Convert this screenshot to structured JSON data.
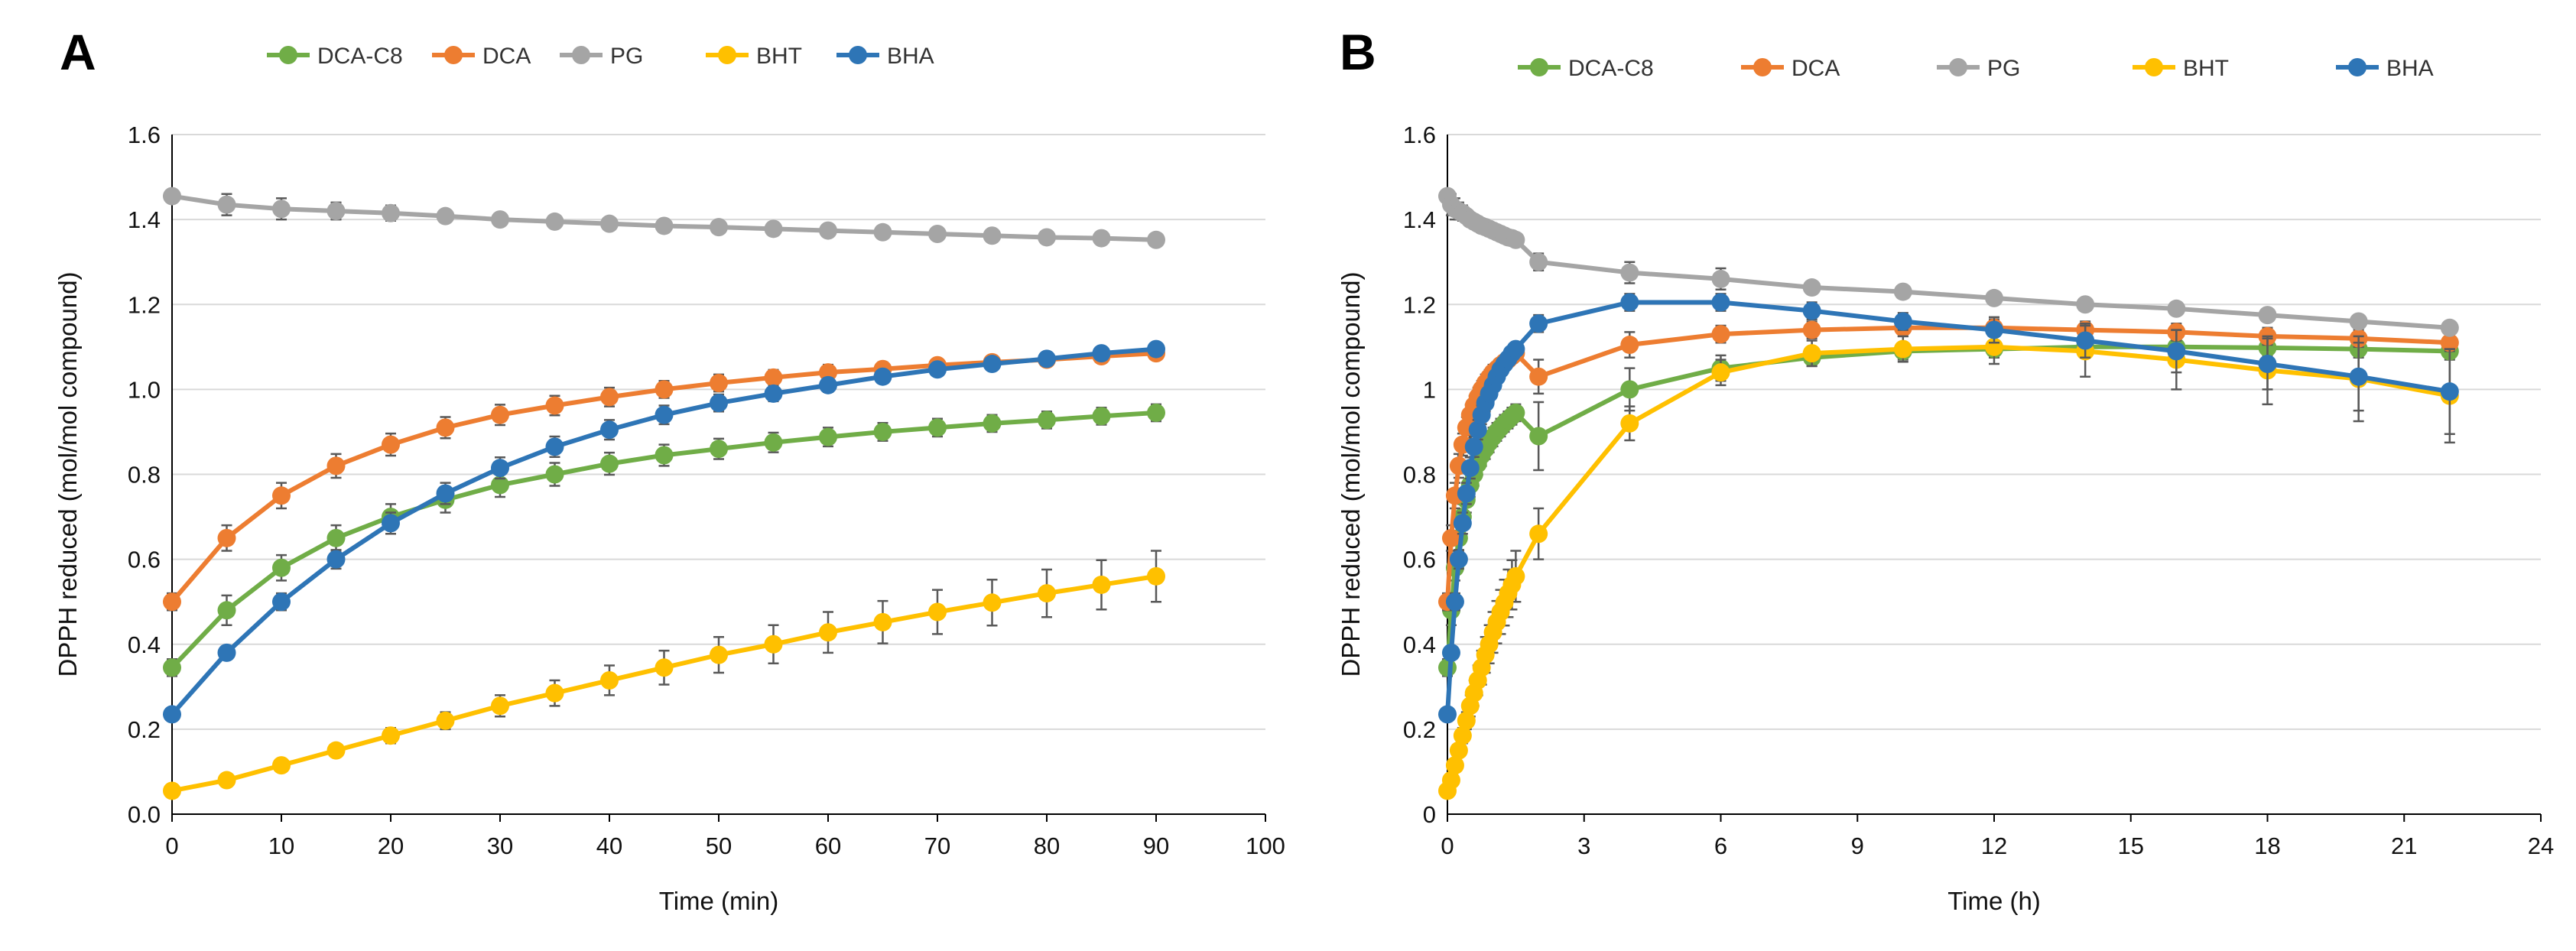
{
  "chart_data": [
    {
      "panel_label": "A",
      "type": "line",
      "xlabel": "Time (min)",
      "ylabel": "DPPH reduced (mol/mol compound)",
      "xlim": [
        0,
        100
      ],
      "ylim": [
        0,
        1.6
      ],
      "xticks": [
        "0",
        "10",
        "20",
        "30",
        "40",
        "50",
        "60",
        "70",
        "80",
        "90",
        "100"
      ],
      "yticks": [
        "0.0",
        "0.2",
        "0.4",
        "0.6",
        "0.8",
        "1.0",
        "1.2",
        "1.4",
        "1.6"
      ],
      "legend_position": "top",
      "grid": "horizontal",
      "x": [
        0,
        5,
        10,
        15,
        20,
        25,
        30,
        35,
        40,
        45,
        50,
        55,
        60,
        65,
        70,
        75,
        80,
        85,
        90
      ],
      "series": [
        {
          "name": "DCA-C8",
          "color": "#70ad47",
          "values": [
            0.345,
            0.48,
            0.58,
            0.65,
            0.7,
            0.74,
            0.775,
            0.8,
            0.825,
            0.845,
            0.86,
            0.875,
            0.888,
            0.9,
            0.91,
            0.92,
            0.928,
            0.937,
            0.945
          ],
          "errors": [
            0.02,
            0.035,
            0.03,
            0.03,
            0.03,
            0.03,
            0.028,
            0.027,
            0.026,
            0.025,
            0.024,
            0.023,
            0.022,
            0.021,
            0.021,
            0.02,
            0.02,
            0.02,
            0.02
          ]
        },
        {
          "name": "DCA",
          "color": "#ed7d31",
          "values": [
            0.5,
            0.65,
            0.75,
            0.82,
            0.87,
            0.91,
            0.94,
            0.962,
            0.982,
            1.0,
            1.015,
            1.028,
            1.04,
            1.048,
            1.057,
            1.064,
            1.07,
            1.078,
            1.085
          ],
          "errors": [
            0.02,
            0.03,
            0.03,
            0.028,
            0.026,
            0.025,
            0.024,
            0.023,
            0.022,
            0.02,
            0.02,
            0.018,
            0.018,
            0.016,
            0.015,
            0.015,
            0.014,
            0.014,
            0.013
          ]
        },
        {
          "name": "PG",
          "color": "#a5a5a5",
          "values": [
            1.455,
            1.435,
            1.425,
            1.42,
            1.415,
            1.408,
            1.4,
            1.395,
            1.39,
            1.385,
            1.382,
            1.378,
            1.374,
            1.37,
            1.366,
            1.362,
            1.358,
            1.356,
            1.352
          ],
          "errors": [
            0.01,
            0.025,
            0.025,
            0.02,
            0.018,
            0.015,
            0.012,
            0.012,
            0.01,
            0.01,
            0.01,
            0.01,
            0.01,
            0.01,
            0.01,
            0.01,
            0.01,
            0.01,
            0.01
          ]
        },
        {
          "name": "BHT",
          "color": "#ffc000",
          "values": [
            0.055,
            0.08,
            0.115,
            0.15,
            0.185,
            0.22,
            0.255,
            0.285,
            0.315,
            0.345,
            0.375,
            0.4,
            0.428,
            0.452,
            0.476,
            0.498,
            0.52,
            0.54,
            0.56
          ],
          "errors": [
            0.01,
            0.01,
            0.012,
            0.015,
            0.018,
            0.02,
            0.025,
            0.03,
            0.035,
            0.04,
            0.042,
            0.045,
            0.048,
            0.05,
            0.052,
            0.054,
            0.056,
            0.058,
            0.06
          ]
        },
        {
          "name": "BHA",
          "color": "#2e75b6",
          "values": [
            0.235,
            0.38,
            0.5,
            0.6,
            0.685,
            0.755,
            0.815,
            0.865,
            0.905,
            0.94,
            0.968,
            0.99,
            1.01,
            1.03,
            1.047,
            1.06,
            1.072,
            1.085,
            1.095
          ],
          "errors": [
            0.01,
            0.015,
            0.02,
            0.022,
            0.025,
            0.025,
            0.025,
            0.024,
            0.023,
            0.022,
            0.02,
            0.018,
            0.016,
            0.015,
            0.014,
            0.013,
            0.012,
            0.012,
            0.012
          ]
        }
      ]
    },
    {
      "panel_label": "B",
      "type": "line",
      "xlabel": "Time (h)",
      "ylabel": "DPPH reduced (mol/mol compound)",
      "xlim": [
        0,
        24
      ],
      "ylim": [
        0,
        1.6
      ],
      "xticks": [
        "0",
        "3",
        "6",
        "9",
        "12",
        "15",
        "18",
        "21",
        "24"
      ],
      "yticks": [
        "0",
        "0.2",
        "0.4",
        "0.6",
        "0.8",
        "1",
        "1.2",
        "1.4",
        "1.6"
      ],
      "legend_position": "top",
      "grid": "horizontal",
      "x": [
        0,
        0.0833,
        0.1667,
        0.25,
        0.3333,
        0.4167,
        0.5,
        0.5833,
        0.6667,
        0.75,
        0.8333,
        0.9167,
        1,
        1.0833,
        1.1667,
        1.25,
        1.3333,
        1.4167,
        1.5,
        2,
        4,
        6,
        8,
        10,
        12,
        14,
        16,
        18,
        20,
        22
      ],
      "series": [
        {
          "name": "DCA-C8",
          "color": "#70ad47",
          "values": [
            0.345,
            0.48,
            0.58,
            0.65,
            0.7,
            0.74,
            0.775,
            0.8,
            0.825,
            0.845,
            0.86,
            0.875,
            0.888,
            0.9,
            0.91,
            0.92,
            0.928,
            0.937,
            0.945,
            0.89,
            1.0,
            1.05,
            1.075,
            1.09,
            1.095,
            1.1,
            1.1,
            1.098,
            1.095,
            1.09
          ],
          "errors": [
            0.02,
            0.035,
            0.03,
            0.03,
            0.03,
            0.03,
            0.028,
            0.027,
            0.026,
            0.025,
            0.024,
            0.023,
            0.022,
            0.021,
            0.021,
            0.02,
            0.02,
            0.02,
            0.02,
            0.08,
            0.05,
            0.03,
            0.02,
            0.02,
            0.02,
            0.02,
            0.02,
            0.02,
            0.02,
            0.02
          ]
        },
        {
          "name": "DCA",
          "color": "#ed7d31",
          "values": [
            0.5,
            0.65,
            0.75,
            0.82,
            0.87,
            0.91,
            0.94,
            0.962,
            0.982,
            1.0,
            1.015,
            1.028,
            1.04,
            1.048,
            1.057,
            1.064,
            1.07,
            1.078,
            1.085,
            1.03,
            1.105,
            1.13,
            1.14,
            1.145,
            1.145,
            1.14,
            1.135,
            1.125,
            1.12,
            1.11
          ],
          "errors": [
            0.02,
            0.03,
            0.03,
            0.028,
            0.026,
            0.025,
            0.024,
            0.023,
            0.022,
            0.02,
            0.02,
            0.018,
            0.018,
            0.016,
            0.015,
            0.015,
            0.014,
            0.014,
            0.013,
            0.04,
            0.03,
            0.02,
            0.02,
            0.02,
            0.02,
            0.02,
            0.02,
            0.02,
            0.02,
            0.02
          ]
        },
        {
          "name": "PG",
          "color": "#a5a5a5",
          "values": [
            1.455,
            1.435,
            1.425,
            1.42,
            1.415,
            1.408,
            1.4,
            1.395,
            1.39,
            1.385,
            1.382,
            1.378,
            1.374,
            1.37,
            1.366,
            1.362,
            1.358,
            1.356,
            1.352,
            1.3,
            1.275,
            1.26,
            1.24,
            1.23,
            1.215,
            1.2,
            1.19,
            1.175,
            1.16,
            1.145
          ],
          "errors": [
            0.01,
            0.025,
            0.025,
            0.02,
            0.018,
            0.015,
            0.012,
            0.012,
            0.01,
            0.01,
            0.01,
            0.01,
            0.01,
            0.01,
            0.01,
            0.01,
            0.01,
            0.01,
            0.01,
            0.02,
            0.025,
            0.025,
            0.015,
            0.015,
            0.015,
            0.015,
            0.015,
            0.015,
            0.015,
            0.015
          ]
        },
        {
          "name": "BHT",
          "color": "#ffc000",
          "values": [
            0.055,
            0.08,
            0.115,
            0.15,
            0.185,
            0.22,
            0.255,
            0.285,
            0.315,
            0.345,
            0.375,
            0.4,
            0.428,
            0.452,
            0.476,
            0.498,
            0.52,
            0.54,
            0.56,
            0.66,
            0.92,
            1.04,
            1.085,
            1.095,
            1.1,
            1.09,
            1.07,
            1.045,
            1.025,
            0.985
          ],
          "errors": [
            0.01,
            0.01,
            0.012,
            0.015,
            0.018,
            0.02,
            0.025,
            0.03,
            0.035,
            0.04,
            0.042,
            0.045,
            0.048,
            0.05,
            0.052,
            0.054,
            0.056,
            0.058,
            0.06,
            0.06,
            0.04,
            0.03,
            0.03,
            0.03,
            0.04,
            0.06,
            0.07,
            0.08,
            0.1,
            0.11
          ]
        },
        {
          "name": "BHA",
          "color": "#2e75b6",
          "values": [
            0.235,
            0.38,
            0.5,
            0.6,
            0.685,
            0.755,
            0.815,
            0.865,
            0.905,
            0.94,
            0.968,
            0.99,
            1.01,
            1.03,
            1.047,
            1.06,
            1.072,
            1.085,
            1.095,
            1.155,
            1.205,
            1.205,
            1.185,
            1.16,
            1.14,
            1.115,
            1.09,
            1.06,
            1.03,
            0.995
          ],
          "errors": [
            0.01,
            0.015,
            0.02,
            0.022,
            0.025,
            0.025,
            0.025,
            0.024,
            0.023,
            0.022,
            0.02,
            0.018,
            0.016,
            0.015,
            0.014,
            0.013,
            0.012,
            0.012,
            0.012,
            0.02,
            0.02,
            0.02,
            0.02,
            0.02,
            0.03,
            0.04,
            0.05,
            0.06,
            0.08,
            0.1
          ]
        }
      ]
    }
  ]
}
